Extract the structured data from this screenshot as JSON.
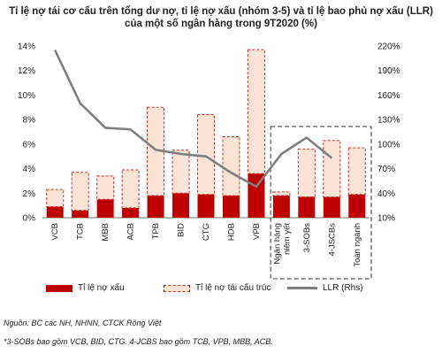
{
  "title_line1": "Tỉ lệ nợ tái cơ cấu trên tổng dư nợ, tỉ lệ nợ xấu (nhóm 3-5) và tỉ lệ bao phủ nợ xấu (LLR)",
  "title_line2": "của một số ngân hàng trong 9T2020 (%)",
  "source": "Nguồn: BC các NH, NHNN, CTCK Rồng Việt",
  "note": "*3-SOBs bao gồm VCB, BID, CTG. 4-JCBS bao gồm TCB, VPB, MBB, ACB.",
  "colors": {
    "bad_debt": "#c00000",
    "restructured_fill": "#fbe3d6",
    "restructured_border": "#c0392b",
    "llr_line": "#7f7f7f",
    "frame": "#333333"
  },
  "chart_data": {
    "type": "bar",
    "stacked": true,
    "title": "Tỉ lệ nợ tái cơ cấu trên tổng dư nợ, tỉ lệ nợ xấu (nhóm 3-5) và tỉ lệ bao phủ nợ xấu (LLR) của một số ngân hàng trong 9T2020 (%)",
    "categories": [
      "VCB",
      "TCB",
      "MBB",
      "ACB",
      "TPB",
      "BID",
      "CTG",
      "HDB",
      "VPB",
      "Ngân hàng niêm yết",
      "3-SOBs",
      "4-JSCBs",
      "Toàn ngành"
    ],
    "series": [
      {
        "name": "Tỉ lệ nợ xấu",
        "axis": "left",
        "values": [
          0.9,
          0.6,
          1.5,
          0.8,
          1.8,
          2.0,
          1.9,
          1.8,
          3.6,
          1.8,
          1.7,
          1.7,
          1.9
        ]
      },
      {
        "name": "Tỉ lệ nợ tái cấu trúc",
        "axis": "left",
        "values": [
          1.4,
          3.1,
          1.9,
          3.1,
          7.2,
          3.5,
          6.5,
          4.8,
          10.1,
          0.3,
          3.9,
          4.6,
          3.8
        ]
      },
      {
        "name": "LLR (Rhs)",
        "axis": "right",
        "type": "line",
        "values": [
          215,
          150,
          120,
          118,
          93,
          88,
          85,
          65,
          48,
          88,
          108,
          83,
          null
        ]
      }
    ],
    "ylim_left": [
      0,
      14
    ],
    "ylim_right": [
      10,
      220
    ],
    "yticks_left": [
      "0%",
      "2%",
      "4%",
      "6%",
      "8%",
      "10%",
      "12%",
      "14%"
    ],
    "yticks_right": [
      "10%",
      "40%",
      "70%",
      "100%",
      "130%",
      "160%",
      "190%",
      "220%"
    ],
    "legend_position": "bottom",
    "grid": false,
    "highlight_group": [
      "Ngân hàng niêm yết",
      "3-SOBs",
      "4-JSCBs",
      "Toàn ngành"
    ]
  }
}
